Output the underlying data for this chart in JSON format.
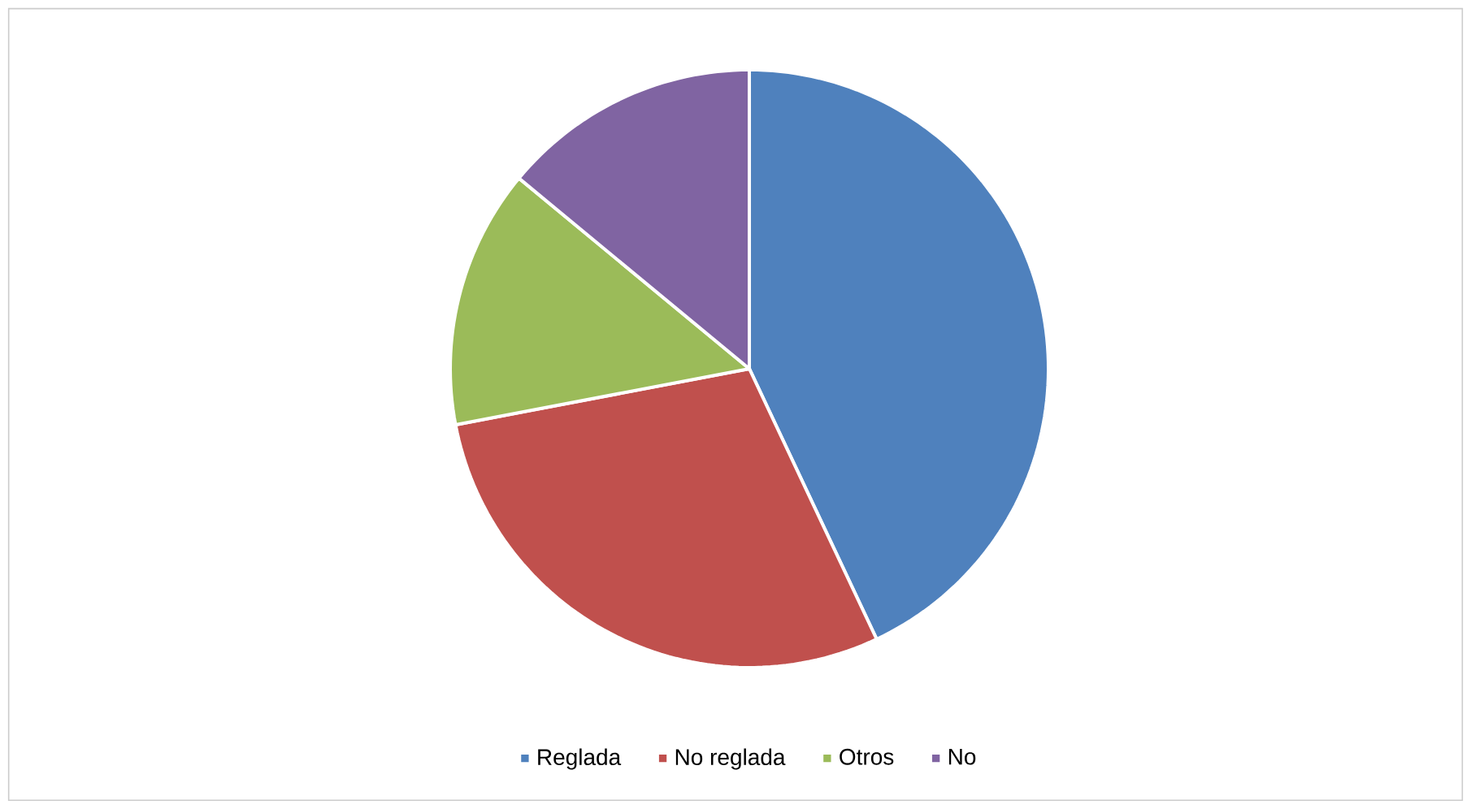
{
  "chart_data": {
    "type": "pie",
    "categories": [
      "Reglada",
      "No reglada",
      "Otros",
      "No"
    ],
    "values": [
      43,
      29,
      14,
      14
    ],
    "colors": [
      "#4f81bd",
      "#c0504d",
      "#9bbb59",
      "#8064a2"
    ],
    "legend": "bottom"
  }
}
